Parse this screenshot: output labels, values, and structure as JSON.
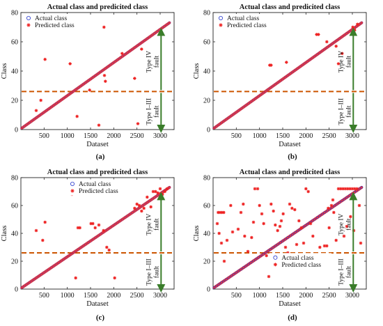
{
  "figure": {
    "panel_labels": [
      "(a)",
      "(b)",
      "(c)",
      "(d)"
    ],
    "series_colors": {
      "actual": "#2233cc",
      "predicted": "#ee2222"
    },
    "annotation_colors": {
      "threshold": "#cc5500",
      "arrow": "#3a7d2a"
    },
    "annotations": {
      "upper": [
        "Type IV",
        "fault"
      ],
      "lower": [
        "Type I–III",
        "fault"
      ]
    }
  },
  "chart_data": [
    {
      "type": "scatter",
      "title": "Actual class and predicited class",
      "xlabel": "Dataset",
      "ylabel": "Class",
      "xlim": [
        0,
        3300
      ],
      "ylim": [
        0,
        80
      ],
      "xticks": [
        500,
        1000,
        1500,
        2000,
        2500,
        3000
      ],
      "yticks": [
        0,
        20,
        40,
        60,
        80
      ],
      "grid": false,
      "legend": "top-left",
      "threshold_y": 26,
      "series": [
        {
          "name": "Actual class",
          "marker": "circle",
          "x": [
            20,
            3200
          ],
          "y": [
            1,
            73
          ]
        },
        {
          "name": "Predicted class",
          "marker": "star",
          "x": [
            20,
            3200
          ],
          "y": [
            1,
            73
          ],
          "outliers": [
            [
              520,
              48
            ],
            [
              1060,
              45
            ],
            [
              1790,
              70
            ],
            [
              1210,
              9
            ],
            [
              1800,
              37
            ],
            [
              1820,
              33
            ],
            [
              2450,
              35
            ],
            [
              2520,
              4
            ],
            [
              2600,
              55
            ],
            [
              1480,
              27
            ],
            [
              1680,
              3
            ],
            [
              2180,
              52
            ],
            [
              330,
              13
            ],
            [
              430,
              20
            ]
          ]
        }
      ]
    },
    {
      "type": "scatter",
      "title": "Actual class and predicited class",
      "xlabel": "Dataset",
      "ylabel": "Class",
      "xlim": [
        0,
        3300
      ],
      "ylim": [
        0,
        80
      ],
      "xticks": [
        500,
        1000,
        1500,
        2000,
        2500,
        3000
      ],
      "yticks": [
        0,
        20,
        40,
        60,
        80
      ],
      "grid": false,
      "legend": "top-left",
      "threshold_y": 26,
      "series": [
        {
          "name": "Actual class",
          "marker": "circle",
          "x": [
            20,
            3200
          ],
          "y": [
            1,
            73
          ]
        },
        {
          "name": "Predicted class",
          "marker": "star",
          "x": [
            20,
            3200
          ],
          "y": [
            1,
            73
          ],
          "outliers": [
            [
              1220,
              44
            ],
            [
              1250,
              44
            ],
            [
              1580,
              46
            ],
            [
              2230,
              65
            ],
            [
              2270,
              65
            ],
            [
              2450,
              60
            ],
            [
              2650,
              57
            ],
            [
              2700,
              45
            ],
            [
              2780,
              52
            ],
            [
              3010,
              70
            ],
            [
              3050,
              68
            ],
            [
              3110,
              72
            ]
          ]
        }
      ]
    },
    {
      "type": "scatter",
      "title": "Actual class and predicited class",
      "xlabel": "Dataset",
      "ylabel": "Class",
      "xlim": [
        0,
        3300
      ],
      "ylim": [
        0,
        80
      ],
      "xticks": [
        500,
        1000,
        1500,
        2000,
        2500,
        3000
      ],
      "yticks": [
        0,
        20,
        40,
        60,
        80
      ],
      "grid": false,
      "legend": "top-right",
      "threshold_y": 26,
      "series": [
        {
          "name": "Actual class",
          "marker": "circle",
          "x": [
            20,
            3200
          ],
          "y": [
            1,
            73
          ]
        },
        {
          "name": "Predicted class",
          "marker": "star",
          "x": [
            20,
            3200
          ],
          "y": [
            1,
            73
          ],
          "outliers": [
            [
              330,
              42
            ],
            [
              470,
              35
            ],
            [
              520,
              48
            ],
            [
              1100,
              68
            ],
            [
              1180,
              8
            ],
            [
              1230,
              44
            ],
            [
              1270,
              44
            ],
            [
              1510,
              47
            ],
            [
              1550,
              47
            ],
            [
              1600,
              44
            ],
            [
              1680,
              46
            ],
            [
              1780,
              42
            ],
            [
              1850,
              30
            ],
            [
              1900,
              28
            ],
            [
              2020,
              8
            ],
            [
              2450,
              58
            ],
            [
              2500,
              61
            ],
            [
              2550,
              60
            ],
            [
              2600,
              56
            ],
            [
              2650,
              58
            ],
            [
              2720,
              66
            ],
            [
              2800,
              59
            ],
            [
              2850,
              70
            ],
            [
              2900,
              70
            ],
            [
              2950,
              69
            ],
            [
              3000,
              72
            ],
            [
              3050,
              68
            ],
            [
              3100,
              70
            ],
            [
              3150,
              72
            ]
          ]
        }
      ]
    },
    {
      "type": "scatter",
      "title": "Actual class and predicited class",
      "xlabel": "Dataset",
      "ylabel": "Class",
      "xlim": [
        0,
        3300
      ],
      "ylim": [
        0,
        80
      ],
      "xticks": [
        500,
        1000,
        1500,
        2000,
        2500,
        3000
      ],
      "yticks": [
        0,
        20,
        40,
        60,
        80
      ],
      "grid": false,
      "legend": "bottom-right",
      "threshold_y": 26,
      "series": [
        {
          "name": "Actual class",
          "marker": "circle",
          "x": [
            20,
            3200
          ],
          "y": [
            1,
            73
          ]
        },
        {
          "name": "Predicted class",
          "marker": "star",
          "x": [
            20,
            3200
          ],
          "y": [
            1,
            73
          ],
          "outliers": [
            [
              110,
              55
            ],
            [
              150,
              55
            ],
            [
              190,
              55
            ],
            [
              230,
              55
            ],
            [
              90,
              47
            ],
            [
              130,
              40
            ],
            [
              180,
              33
            ],
            [
              240,
              20
            ],
            [
              300,
              35
            ],
            [
              380,
              60
            ],
            [
              420,
              41
            ],
            [
              540,
              43
            ],
            [
              600,
              55
            ],
            [
              650,
              61
            ],
            [
              680,
              38
            ],
            [
              750,
              27
            ],
            [
              830,
              37
            ],
            [
              870,
              48
            ],
            [
              900,
              72
            ],
            [
              960,
              72
            ],
            [
              1000,
              60
            ],
            [
              1050,
              54
            ],
            [
              1090,
              47
            ],
            [
              1150,
              24
            ],
            [
              1200,
              9
            ],
            [
              1250,
              61
            ],
            [
              1300,
              56
            ],
            [
              1340,
              46
            ],
            [
              1390,
              42
            ],
            [
              1440,
              45
            ],
            [
              1470,
              49
            ],
            [
              1510,
              54
            ],
            [
              1560,
              30
            ],
            [
              1610,
              26
            ],
            [
              1650,
              61
            ],
            [
              1700,
              58
            ],
            [
              1760,
              57
            ],
            [
              1800,
              32
            ],
            [
              1850,
              49
            ],
            [
              1900,
              44
            ],
            [
              1950,
              33
            ],
            [
              2000,
              72
            ],
            [
              2050,
              70
            ],
            [
              2100,
              47
            ],
            [
              2150,
              38
            ],
            [
              2200,
              20
            ],
            [
              2250,
              24
            ],
            [
              2300,
              30
            ],
            [
              2350,
              18
            ],
            [
              2400,
              31
            ],
            [
              2450,
              31
            ],
            [
              2500,
              44
            ],
            [
              2550,
              60
            ],
            [
              2600,
              55
            ],
            [
              2650,
              35
            ],
            [
              2700,
              72
            ],
            [
              2750,
              72
            ],
            [
              2800,
              72
            ],
            [
              2850,
              72
            ],
            [
              2900,
              72
            ],
            [
              2950,
              72
            ],
            [
              3000,
              72
            ],
            [
              3050,
              72
            ],
            [
              3100,
              72
            ],
            [
              3150,
              60
            ],
            [
              3180,
              33
            ],
            [
              2820,
              38
            ],
            [
              2880,
              45
            ],
            [
              2960,
              52
            ],
            [
              3030,
              42
            ],
            [
              2580,
              64
            ],
            [
              2480,
              58
            ]
          ]
        }
      ]
    }
  ]
}
